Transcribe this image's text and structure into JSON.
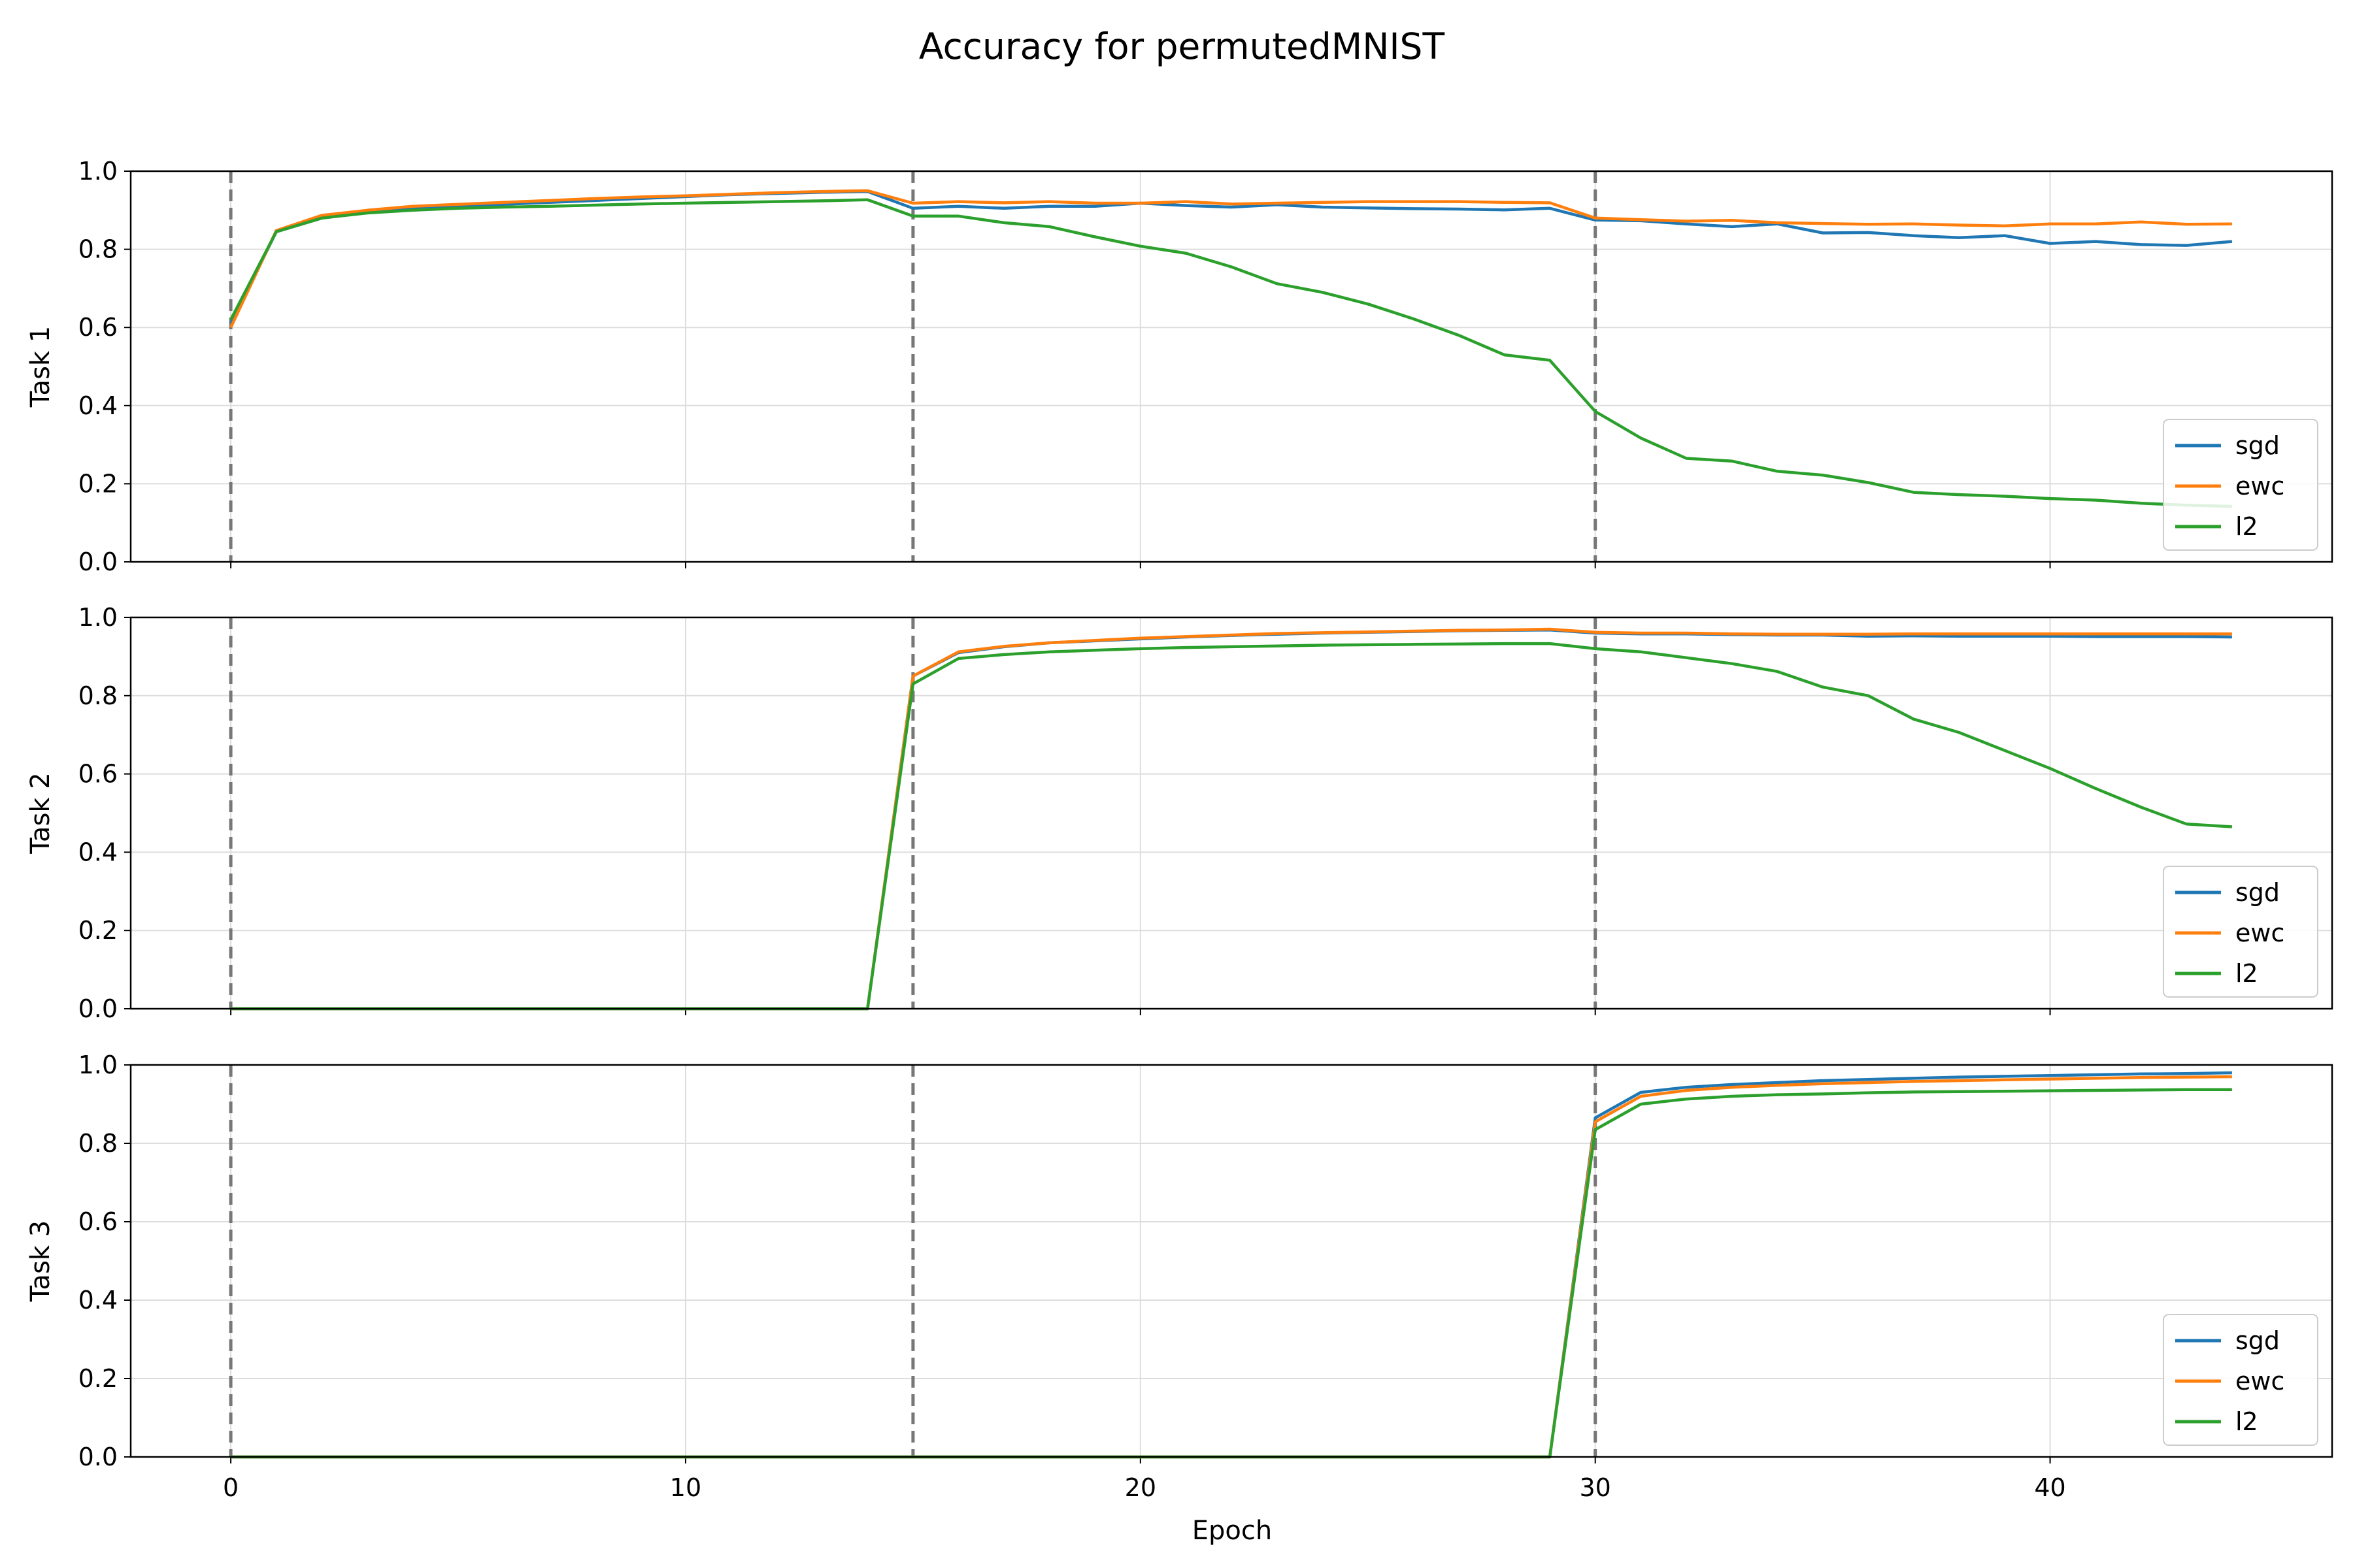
{
  "chart_data": {
    "type": "line",
    "title": "Accuracy for permutedMNIST",
    "xlabel": "Epoch",
    "xlim": [
      -2.2,
      46.2
    ],
    "xticks": [
      0,
      10,
      20,
      30,
      40
    ],
    "ylim": [
      0,
      1
    ],
    "yticks": [
      "0.0",
      "0.2",
      "0.4",
      "0.6",
      "0.8",
      "1.0"
    ],
    "grid": true,
    "legend_position": "lower-right",
    "task_boundaries": [
      0,
      15,
      30
    ],
    "colors": {
      "sgd": "#1f77b4",
      "ewc": "#ff7f0e",
      "l2": "#2ca02c",
      "boundary": "#777777",
      "grid": "#dddddd"
    },
    "x": [
      0,
      1,
      2,
      3,
      4,
      5,
      6,
      7,
      8,
      9,
      10,
      11,
      12,
      13,
      14,
      15,
      16,
      17,
      18,
      19,
      20,
      21,
      22,
      23,
      24,
      25,
      26,
      27,
      28,
      29,
      30,
      31,
      32,
      33,
      34,
      35,
      36,
      37,
      38,
      39,
      40,
      41,
      42,
      43,
      44
    ],
    "panels": [
      {
        "ylabel": "Task 1",
        "series": [
          {
            "name": "sgd",
            "values": [
              0.61,
              0.845,
              0.88,
              0.895,
              0.905,
              0.91,
              0.915,
              0.92,
              0.925,
              0.93,
              0.935,
              0.94,
              0.943,
              0.946,
              0.948,
              0.905,
              0.91,
              0.905,
              0.91,
              0.91,
              0.918,
              0.912,
              0.908,
              0.914,
              0.908,
              0.906,
              0.904,
              0.903,
              0.901,
              0.905,
              0.875,
              0.873,
              0.865,
              0.858,
              0.865,
              0.842,
              0.843,
              0.835,
              0.83,
              0.835,
              0.815,
              0.82,
              0.812,
              0.81,
              0.82
            ]
          },
          {
            "name": "ewc",
            "values": [
              0.6,
              0.848,
              0.887,
              0.9,
              0.91,
              0.915,
              0.92,
              0.925,
              0.93,
              0.934,
              0.937,
              0.941,
              0.945,
              0.948,
              0.95,
              0.918,
              0.922,
              0.919,
              0.922,
              0.918,
              0.918,
              0.922,
              0.916,
              0.918,
              0.92,
              0.922,
              0.922,
              0.922,
              0.92,
              0.919,
              0.88,
              0.876,
              0.872,
              0.874,
              0.868,
              0.866,
              0.864,
              0.865,
              0.862,
              0.86,
              0.865,
              0.865,
              0.87,
              0.864,
              0.865
            ]
          },
          {
            "name": "l2",
            "values": [
              0.62,
              0.845,
              0.88,
              0.893,
              0.9,
              0.905,
              0.908,
              0.91,
              0.913,
              0.916,
              0.918,
              0.92,
              0.922,
              0.924,
              0.927,
              0.885,
              0.885,
              0.868,
              0.858,
              0.832,
              0.808,
              0.79,
              0.755,
              0.712,
              0.69,
              0.66,
              0.622,
              0.58,
              0.53,
              0.516,
              0.385,
              0.317,
              0.265,
              0.258,
              0.232,
              0.222,
              0.203,
              0.178,
              0.172,
              0.168,
              0.162,
              0.158,
              0.15,
              0.145,
              0.142
            ]
          }
        ]
      },
      {
        "ylabel": "Task 2",
        "series": [
          {
            "name": "sgd",
            "values": [
              0,
              0,
              0,
              0,
              0,
              0,
              0,
              0,
              0,
              0,
              0,
              0,
              0,
              0,
              0,
              0.85,
              0.91,
              0.925,
              0.935,
              0.94,
              0.945,
              0.95,
              0.954,
              0.957,
              0.96,
              0.962,
              0.964,
              0.966,
              0.967,
              0.968,
              0.96,
              0.958,
              0.958,
              0.956,
              0.955,
              0.955,
              0.952,
              0.953,
              0.952,
              0.952,
              0.952,
              0.951,
              0.951,
              0.951,
              0.95
            ]
          },
          {
            "name": "ewc",
            "values": [
              0,
              0,
              0,
              0,
              0,
              0,
              0,
              0,
              0,
              0,
              0,
              0,
              0,
              0,
              0,
              0.85,
              0.912,
              0.926,
              0.935,
              0.941,
              0.947,
              0.951,
              0.955,
              0.959,
              0.961,
              0.963,
              0.965,
              0.967,
              0.968,
              0.97,
              0.962,
              0.96,
              0.96,
              0.958,
              0.957,
              0.957,
              0.957,
              0.958,
              0.958,
              0.958,
              0.958,
              0.958,
              0.958,
              0.958,
              0.958
            ]
          },
          {
            "name": "l2",
            "values": [
              0,
              0,
              0,
              0,
              0,
              0,
              0,
              0,
              0,
              0,
              0,
              0,
              0,
              0,
              0,
              0.83,
              0.895,
              0.905,
              0.912,
              0.916,
              0.92,
              0.923,
              0.925,
              0.927,
              0.929,
              0.93,
              0.931,
              0.932,
              0.933,
              0.933,
              0.92,
              0.912,
              0.897,
              0.882,
              0.862,
              0.822,
              0.8,
              0.74,
              0.706,
              0.66,
              0.614,
              0.563,
              0.515,
              0.472,
              0.465
            ]
          }
        ]
      },
      {
        "ylabel": "Task 3",
        "series": [
          {
            "name": "sgd",
            "values": [
              0,
              0,
              0,
              0,
              0,
              0,
              0,
              0,
              0,
              0,
              0,
              0,
              0,
              0,
              0,
              0,
              0,
              0,
              0,
              0,
              0,
              0,
              0,
              0,
              0,
              0,
              0,
              0,
              0,
              0,
              0.865,
              0.93,
              0.943,
              0.95,
              0.955,
              0.96,
              0.963,
              0.966,
              0.969,
              0.971,
              0.973,
              0.975,
              0.977,
              0.978,
              0.98
            ]
          },
          {
            "name": "ewc",
            "values": [
              0,
              0,
              0,
              0,
              0,
              0,
              0,
              0,
              0,
              0,
              0,
              0,
              0,
              0,
              0,
              0,
              0,
              0,
              0,
              0,
              0,
              0,
              0,
              0,
              0,
              0,
              0,
              0,
              0,
              0,
              0.855,
              0.92,
              0.935,
              0.943,
              0.948,
              0.952,
              0.955,
              0.958,
              0.96,
              0.962,
              0.964,
              0.966,
              0.968,
              0.969,
              0.97
            ]
          },
          {
            "name": "l2",
            "values": [
              0,
              0,
              0,
              0,
              0,
              0,
              0,
              0,
              0,
              0,
              0,
              0,
              0,
              0,
              0,
              0,
              0,
              0,
              0,
              0,
              0,
              0,
              0,
              0,
              0,
              0,
              0,
              0,
              0,
              0,
              0.835,
              0.9,
              0.913,
              0.92,
              0.924,
              0.926,
              0.929,
              0.931,
              0.932,
              0.933,
              0.934,
              0.935,
              0.936,
              0.937,
              0.937
            ]
          }
        ]
      }
    ]
  }
}
